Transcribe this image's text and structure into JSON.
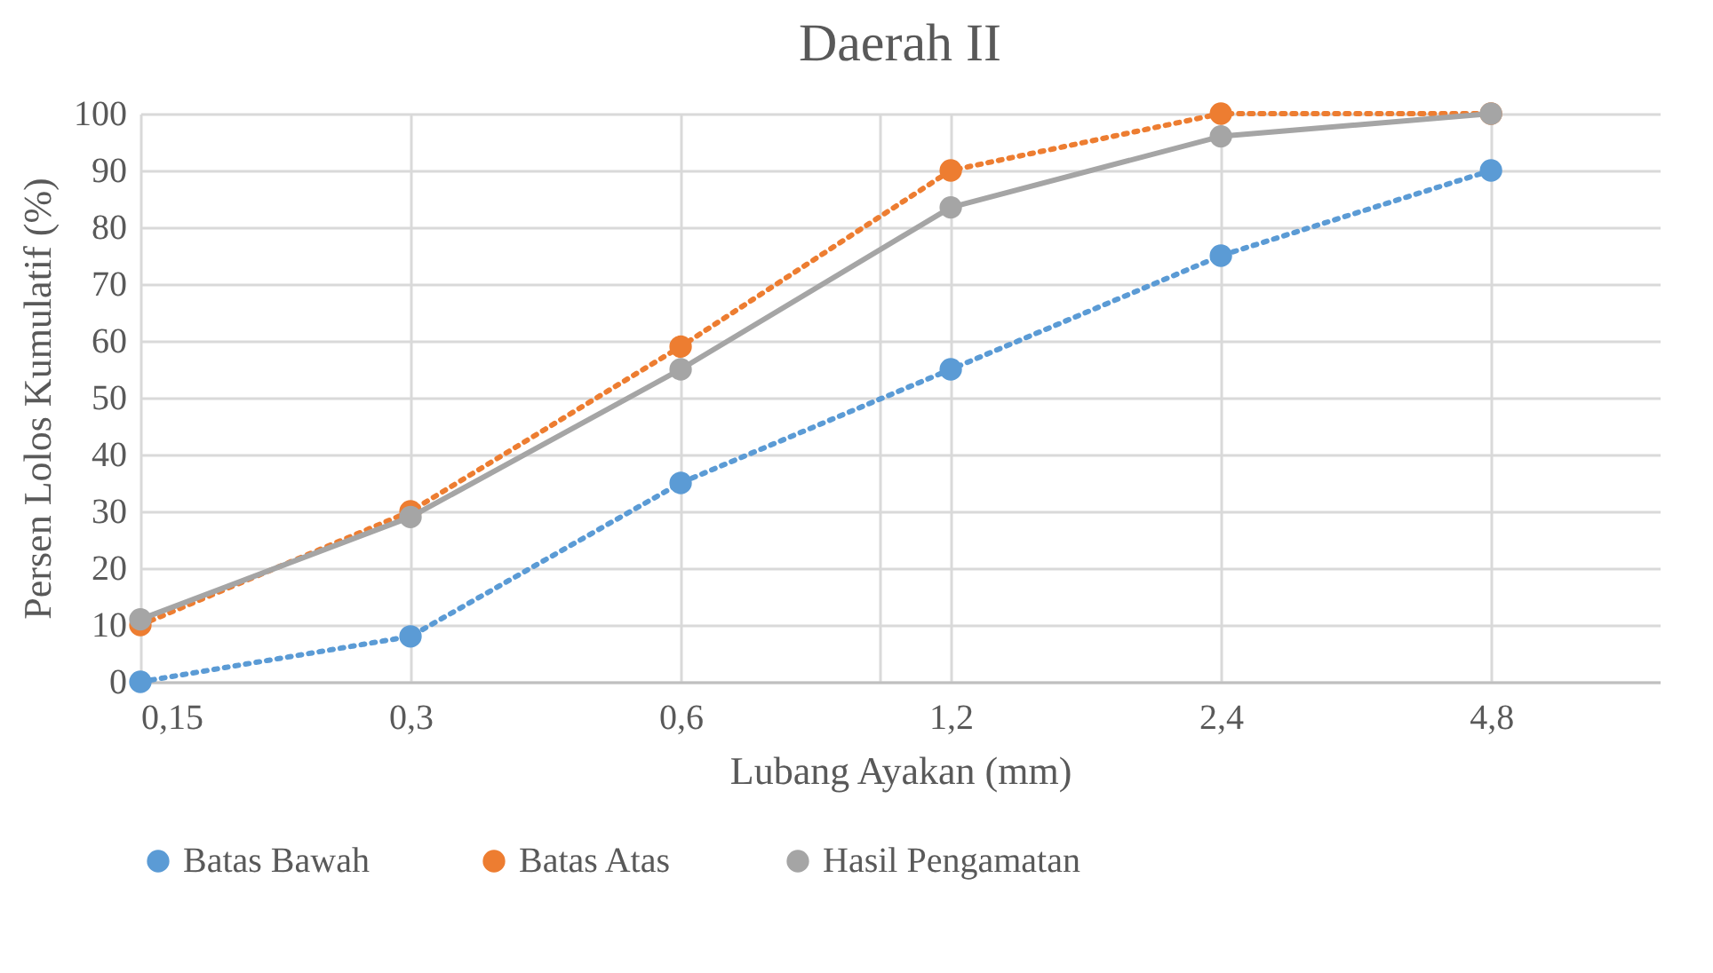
{
  "chart_data": {
    "type": "line",
    "title": "Daerah II",
    "xlabel": "Lubang Ayakan (mm)",
    "ylabel": "Persen Lolos Kumulatif (%)",
    "log": "x",
    "x": [
      0.15,
      0.3,
      0.6,
      1.2,
      2.4,
      4.8
    ],
    "xlim": [
      0.15,
      7.4
    ],
    "xticks": [
      {
        "value": 0.15,
        "label": "0,15"
      },
      {
        "value": 0.3,
        "label": "0,3"
      },
      {
        "value": 0.6,
        "label": "0,6"
      },
      {
        "value": 1,
        "label": null
      },
      {
        "value": 1.2,
        "label": "1,2"
      },
      {
        "value": 2.4,
        "label": "2,4"
      },
      {
        "value": 4.8,
        "label": "4,8"
      }
    ],
    "ylim": [
      0,
      100
    ],
    "yticks": [
      0,
      10,
      20,
      30,
      40,
      50,
      60,
      70,
      80,
      90,
      100
    ],
    "grid": true,
    "legend": "bottom",
    "marker": "circle",
    "series": [
      {
        "name": "Batas Bawah",
        "color": "#5b9bd5",
        "line_style": "dotted",
        "values": [
          0,
          8,
          35,
          55,
          75,
          90
        ]
      },
      {
        "name": "Batas Atas",
        "color": "#ed7d31",
        "line_style": "dotted",
        "values": [
          10,
          30,
          59,
          90,
          100,
          100
        ]
      },
      {
        "name": "Hasil Pengamatan",
        "color": "#a5a5a5",
        "line_style": "solid",
        "values": [
          11,
          29,
          55,
          83.5,
          96,
          100
        ]
      }
    ]
  }
}
